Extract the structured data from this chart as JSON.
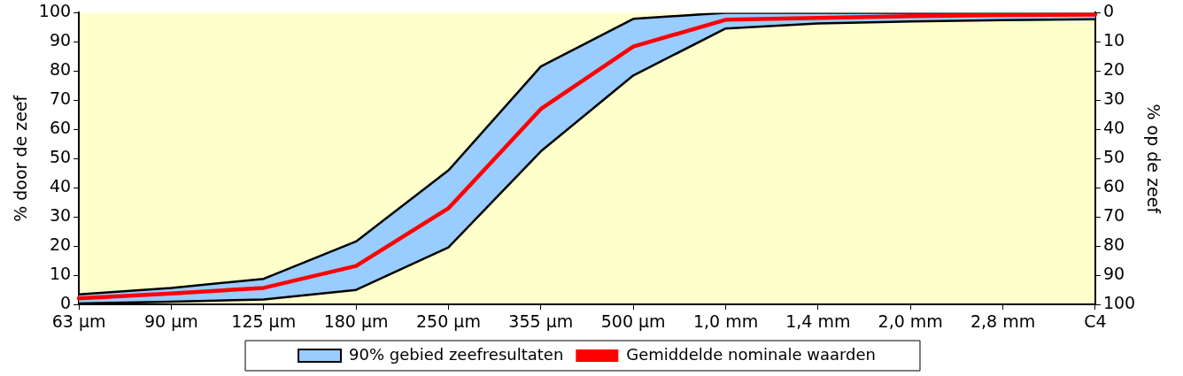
{
  "chart_data": {
    "type": "line",
    "ylabel": "% door de zeef",
    "y2label": "% op de zeef",
    "categories": [
      "63 µm",
      "90 µm",
      "125 µm",
      "180 µm",
      "250 µm",
      "355 µm",
      "500 µm",
      "1,0 mm",
      "1,4 mm",
      "2,0 mm",
      "2,8 mm",
      "C4"
    ],
    "ylim": [
      0,
      100
    ],
    "yticks": [
      0,
      10,
      20,
      30,
      40,
      50,
      60,
      70,
      80,
      90,
      100
    ],
    "y2lim": [
      100,
      0
    ],
    "y2ticks": [
      0,
      10,
      20,
      30,
      40,
      50,
      60,
      70,
      80,
      90,
      100
    ],
    "grid": false,
    "legend": "bottom",
    "marker": "none",
    "line_style": "solid",
    "series": [
      {
        "type": "line",
        "color": "#000000",
        "values": [
          0.4,
          1,
          1.7,
          5,
          19.6,
          52.5,
          78.5,
          94.6,
          96.3,
          97,
          97.5,
          97.8
        ]
      },
      {
        "name": "90% gebied zeefresultaten",
        "type": "area",
        "color": "#99ccff",
        "values": [
          3.5,
          5.7,
          8.8,
          21.6,
          46,
          81.6,
          97.9,
          100,
          100,
          100,
          100,
          100
        ]
      },
      {
        "name": "Gemiddelde nominale waarden",
        "type": "line",
        "color": "#ff0000",
        "values": [
          2.1,
          3.8,
          5.7,
          13.2,
          33,
          67,
          88.4,
          97.6,
          98.2,
          98.8,
          99.2,
          99.4
        ]
      }
    ]
  }
}
